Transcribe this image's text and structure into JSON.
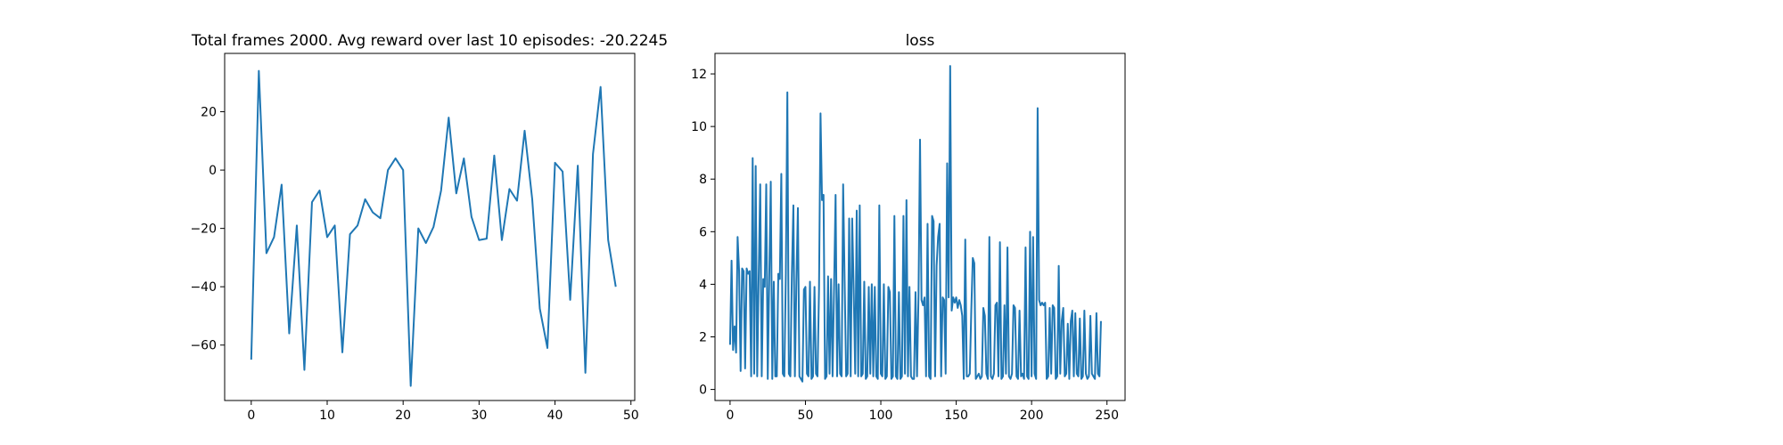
{
  "chart_data": [
    {
      "type": "line",
      "title": "Total frames 2000. Avg reward over last 10 episodes: -20.2245",
      "xlabel": "",
      "ylabel": "",
      "xlim": [
        -3.5,
        50.5
      ],
      "ylim": [
        -79,
        40
      ],
      "xticks": [
        0,
        10,
        20,
        30,
        40,
        50
      ],
      "yticks": [
        -60,
        -40,
        -20,
        0,
        20
      ],
      "grid": false,
      "x": [
        0,
        1,
        2,
        3,
        4,
        5,
        6,
        7,
        8,
        9,
        10,
        11,
        12,
        13,
        14,
        15,
        16,
        17,
        18,
        19,
        20,
        21,
        22,
        23,
        24,
        25,
        26,
        27,
        28,
        29,
        30,
        31,
        32,
        33,
        34,
        35,
        36,
        37,
        38,
        39,
        40,
        41,
        42,
        43,
        44,
        45,
        46,
        47,
        48
      ],
      "series": [
        {
          "values": [
            -65,
            34,
            -28.5,
            -23,
            -5,
            -56,
            -19,
            -68.5,
            -11,
            -7,
            -23,
            -19,
            -62.5,
            -22,
            -19,
            -10,
            -14.5,
            -16.5,
            0,
            4,
            0,
            -74,
            -20,
            -25,
            -19.5,
            -7,
            18,
            -8,
            4,
            -16,
            -24,
            -23.5,
            5,
            -24,
            -6.5,
            -10.5,
            13.5,
            -10,
            -47.5,
            -61,
            2.5,
            -0.5,
            -44.5,
            1.5,
            -69.5,
            5.5,
            28.5,
            -24,
            -40
          ]
        }
      ]
    },
    {
      "type": "line",
      "title": "loss",
      "xlabel": "",
      "ylabel": "",
      "xlim": [
        -10,
        262
      ],
      "ylim": [
        -0.42,
        12.78
      ],
      "xticks": [
        0,
        50,
        100,
        150,
        200,
        250
      ],
      "yticks": [
        0,
        2,
        4,
        6,
        8,
        10,
        12
      ],
      "grid": false,
      "x_start": 0,
      "x_step": 1,
      "series": [
        {
          "values": [
            1.7,
            4.9,
            1.5,
            2.4,
            1.4,
            5.8,
            4.5,
            0.7,
            4.6,
            4.5,
            0.8,
            4.6,
            4.4,
            4.5,
            0.5,
            8.8,
            0.6,
            8.5,
            0.5,
            4.3,
            7.8,
            0.5,
            4.2,
            3.9,
            7.8,
            0.4,
            4.3,
            7.9,
            0.4,
            4.1,
            0.5,
            0.5,
            4.4,
            4.2,
            8.2,
            0.6,
            0.5,
            4.4,
            11.3,
            0.6,
            0.5,
            4.4,
            7.0,
            0.5,
            4.1,
            6.9,
            0.5,
            0.4,
            0.3,
            3.8,
            3.9,
            0.6,
            0.5,
            4.1,
            0.4,
            0.5,
            3.9,
            0.6,
            0.5,
            3.8,
            10.5,
            7.2,
            7.4,
            0.4,
            0.5,
            4.3,
            0.6,
            4.2,
            0.5,
            3.9,
            7.4,
            0.5,
            4.0,
            0.6,
            0.5,
            7.8,
            4.1,
            0.5,
            0.6,
            6.5,
            0.5,
            6.5,
            3.8,
            0.6,
            6.8,
            0.5,
            7.0,
            0.5,
            0.6,
            4.1,
            0.4,
            0.5,
            3.9,
            0.6,
            4.0,
            0.5,
            3.9,
            0.5,
            0.4,
            7.0,
            0.6,
            0.5,
            4.0,
            0.4,
            0.5,
            3.9,
            3.7,
            0.4,
            0.5,
            6.6,
            0.5,
            0.4,
            3.7,
            0.4,
            0.5,
            6.6,
            0.6,
            7.2,
            0.5,
            3.9,
            0.5,
            0.4,
            0.4,
            3.7,
            0.5,
            3.6,
            9.5,
            3.4,
            3.2,
            3.5,
            0.5,
            6.3,
            0.5,
            0.4,
            6.6,
            6.4,
            0.5,
            4.7,
            5.8,
            6.3,
            0.5,
            3.5,
            3.4,
            0.6,
            8.6,
            3.5,
            12.3,
            3.0,
            3.5,
            3.3,
            3.5,
            3.1,
            3.4,
            3.2,
            2.8,
            0.4,
            5.7,
            0.5,
            0.5,
            0.6,
            3.0,
            5.0,
            4.8,
            0.4,
            0.5,
            0.6,
            0.4,
            0.5,
            3.1,
            2.8,
            0.6,
            0.4,
            5.8,
            0.5,
            0.4,
            0.6,
            3.2,
            3.3,
            0.5,
            5.6,
            0.4,
            0.5,
            3.2,
            0.6,
            5.4,
            0.5,
            0.4,
            0.6,
            3.2,
            3.1,
            0.5,
            0.4,
            3.0,
            0.5,
            0.6,
            0.4,
            5.4,
            0.5,
            0.4,
            6.0,
            0.5,
            5.8,
            0.6,
            0.4,
            10.7,
            3.4,
            3.2,
            3.3,
            3.2,
            3.3,
            0.4,
            0.5,
            3.1,
            0.6,
            3.2,
            3.1,
            0.4,
            0.5,
            4.7,
            0.6,
            2.6,
            3.1,
            0.5,
            0.6,
            2.5,
            0.4,
            2.6,
            3.0,
            0.5,
            2.9,
            0.6,
            0.5,
            2.7,
            0.4,
            0.5,
            3.0,
            0.6,
            0.4,
            0.5,
            2.8,
            0.6,
            0.5,
            0.4,
            2.9,
            0.6,
            0.5,
            2.6
          ]
        }
      ]
    }
  ]
}
